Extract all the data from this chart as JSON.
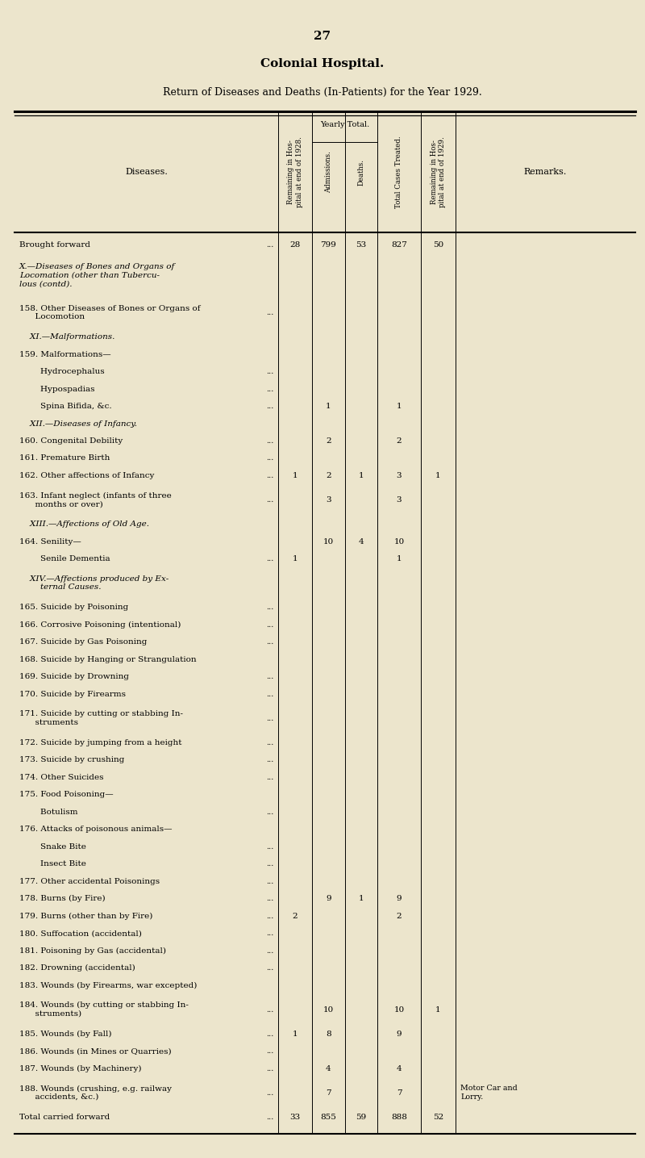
{
  "page_number": "27",
  "title": "Colonial Hospital.",
  "subtitle": "Return of Diseases and Deaths (In-Patients) for the Year 1929.",
  "bg_color": "#ece5cc",
  "rows": [
    {
      "label": "Brought forward",
      "dots": true,
      "rem28": "28",
      "adm": "799",
      "dea": "53",
      "tot": "827",
      "rem29": "50",
      "rem": "",
      "multiline": false,
      "style": "normal",
      "indented": false
    },
    {
      "label": "X.—Diseases of Bones and Organs of\nLocomation (other than Tubercu-\nlous (contd).",
      "dots": false,
      "rem28": "",
      "adm": "",
      "dea": "",
      "tot": "",
      "rem29": "",
      "rem": "",
      "multiline": true,
      "style": "italic",
      "indented": false
    },
    {
      "label": "158. Other Diseases of Bones or Organs of\n      Locomotion",
      "dots": true,
      "rem28": "",
      "adm": "",
      "dea": "",
      "tot": "",
      "rem29": "",
      "rem": "",
      "multiline": true,
      "style": "normal",
      "indented": false
    },
    {
      "label": "    XI.—Malformations.",
      "dots": false,
      "rem28": "",
      "adm": "",
      "dea": "",
      "tot": "",
      "rem29": "",
      "rem": "",
      "multiline": false,
      "style": "italic",
      "indented": true
    },
    {
      "label": "159. Malformations—",
      "dots": false,
      "rem28": "",
      "adm": "",
      "dea": "",
      "tot": "",
      "rem29": "",
      "rem": "",
      "multiline": false,
      "style": "normal",
      "indented": false
    },
    {
      "label": "        Hydrocephalus",
      "dots": true,
      "rem28": "",
      "adm": "",
      "dea": "",
      "tot": "",
      "rem29": "",
      "rem": "",
      "multiline": false,
      "style": "normal",
      "indented": true
    },
    {
      "label": "        Hypospadias",
      "dots": true,
      "rem28": "",
      "adm": "",
      "dea": "",
      "tot": "",
      "rem29": "",
      "rem": "",
      "multiline": false,
      "style": "normal",
      "indented": true
    },
    {
      "label": "        Spina Bifida, &c.",
      "dots": true,
      "rem28": "",
      "adm": "1",
      "dea": "",
      "tot": "1",
      "rem29": "",
      "rem": "",
      "multiline": false,
      "style": "normal",
      "indented": true
    },
    {
      "label": "    XII.—Diseases of Infancy.",
      "dots": false,
      "rem28": "",
      "adm": "",
      "dea": "",
      "tot": "",
      "rem29": "",
      "rem": "",
      "multiline": false,
      "style": "italic",
      "indented": true
    },
    {
      "label": "160. Congenital Debility",
      "dots": true,
      "rem28": "",
      "adm": "2",
      "dea": "",
      "tot": "2",
      "rem29": "",
      "rem": "",
      "multiline": false,
      "style": "normal",
      "indented": false
    },
    {
      "label": "161. Premature Birth",
      "dots": true,
      "rem28": "",
      "adm": "",
      "dea": "",
      "tot": "",
      "rem29": "",
      "rem": "",
      "multiline": false,
      "style": "normal",
      "indented": false
    },
    {
      "label": "162. Other affections of Infancy",
      "dots": true,
      "rem28": "1",
      "adm": "2",
      "dea": "1",
      "tot": "3",
      "rem29": "1",
      "rem": "",
      "multiline": false,
      "style": "normal",
      "indented": false
    },
    {
      "label": "163. Infant neglect (infants of three\n      months or over)",
      "dots": true,
      "rem28": "",
      "adm": "3",
      "dea": "",
      "tot": "3",
      "rem29": "",
      "rem": "",
      "multiline": true,
      "style": "normal",
      "indented": false
    },
    {
      "label": "    XIII.—Affections of Old Age.",
      "dots": false,
      "rem28": "",
      "adm": "",
      "dea": "",
      "tot": "",
      "rem29": "",
      "rem": "",
      "multiline": false,
      "style": "italic",
      "indented": true
    },
    {
      "label": "164. Senility—",
      "dots": false,
      "rem28": "",
      "adm": "10",
      "dea": "4",
      "tot": "10",
      "rem29": "",
      "rem": "",
      "multiline": false,
      "style": "normal",
      "indented": false
    },
    {
      "label": "        Senile Dementia",
      "dots": true,
      "rem28": "1",
      "adm": "",
      "dea": "",
      "tot": "1",
      "rem29": "",
      "rem": "",
      "multiline": false,
      "style": "normal",
      "indented": true
    },
    {
      "label": "    XIV.—Affections produced by Ex-\n        ternal Causes.",
      "dots": false,
      "rem28": "",
      "adm": "",
      "dea": "",
      "tot": "",
      "rem29": "",
      "rem": "",
      "multiline": true,
      "style": "italic",
      "indented": true
    },
    {
      "label": "165. Suicide by Poisoning",
      "dots": true,
      "rem28": "",
      "adm": "",
      "dea": "",
      "tot": "",
      "rem29": "",
      "rem": "",
      "multiline": false,
      "style": "normal",
      "indented": false
    },
    {
      "label": "166. Corrosive Poisoning (intentional)",
      "dots": true,
      "rem28": "",
      "adm": "",
      "dea": "",
      "tot": "",
      "rem29": "",
      "rem": "",
      "multiline": false,
      "style": "normal",
      "indented": false
    },
    {
      "label": "167. Suicide by Gas Poisoning",
      "dots": true,
      "rem28": "",
      "adm": "",
      "dea": "",
      "tot": "",
      "rem29": "",
      "rem": "",
      "multiline": false,
      "style": "normal",
      "indented": false
    },
    {
      "label": "168. Suicide by Hanging or Strangulation",
      "dots": false,
      "rem28": "",
      "adm": "",
      "dea": "",
      "tot": "",
      "rem29": "",
      "rem": "",
      "multiline": false,
      "style": "normal",
      "indented": false
    },
    {
      "label": "169. Suicide by Drowning",
      "dots": true,
      "rem28": "",
      "adm": "",
      "dea": "",
      "tot": "",
      "rem29": "",
      "rem": "",
      "multiline": false,
      "style": "normal",
      "indented": false
    },
    {
      "label": "170. Suicide by Firearms",
      "dots": true,
      "rem28": "",
      "adm": "",
      "dea": "",
      "tot": "",
      "rem29": "",
      "rem": "",
      "multiline": false,
      "style": "normal",
      "indented": false
    },
    {
      "label": "171. Suicide by cutting or stabbing In-\n      struments",
      "dots": true,
      "rem28": "",
      "adm": "",
      "dea": "",
      "tot": "",
      "rem29": "",
      "rem": "",
      "multiline": true,
      "style": "normal",
      "indented": false
    },
    {
      "label": "172. Suicide by jumping from a height",
      "dots": true,
      "rem28": "",
      "adm": "",
      "dea": "",
      "tot": "",
      "rem29": "",
      "rem": "",
      "multiline": false,
      "style": "normal",
      "indented": false
    },
    {
      "label": "173. Suicide by crushing",
      "dots": true,
      "rem28": "",
      "adm": "",
      "dea": "",
      "tot": "",
      "rem29": "",
      "rem": "",
      "multiline": false,
      "style": "normal",
      "indented": false
    },
    {
      "label": "174. Other Suicides",
      "dots": true,
      "rem28": "",
      "adm": "",
      "dea": "",
      "tot": "",
      "rem29": "",
      "rem": "",
      "multiline": false,
      "style": "normal",
      "indented": false
    },
    {
      "label": "175. Food Poisoning—",
      "dots": false,
      "rem28": "",
      "adm": "",
      "dea": "",
      "tot": "",
      "rem29": "",
      "rem": "",
      "multiline": false,
      "style": "normal",
      "indented": false
    },
    {
      "label": "        Botulism",
      "dots": true,
      "rem28": "",
      "adm": "",
      "dea": "",
      "tot": "",
      "rem29": "",
      "rem": "",
      "multiline": false,
      "style": "normal",
      "indented": true
    },
    {
      "label": "176. Attacks of poisonous animals—",
      "dots": false,
      "rem28": "",
      "adm": "",
      "dea": "",
      "tot": "",
      "rem29": "",
      "rem": "",
      "multiline": false,
      "style": "normal",
      "indented": false
    },
    {
      "label": "        Snake Bite",
      "dots": true,
      "rem28": "",
      "adm": "",
      "dea": "",
      "tot": "",
      "rem29": "",
      "rem": "",
      "multiline": false,
      "style": "normal",
      "indented": true
    },
    {
      "label": "        Insect Bite",
      "dots": true,
      "rem28": "",
      "adm": "",
      "dea": "",
      "tot": "",
      "rem29": "",
      "rem": "",
      "multiline": false,
      "style": "normal",
      "indented": true
    },
    {
      "label": "177. Other accidental Poisonings",
      "dots": true,
      "rem28": "",
      "adm": "",
      "dea": "",
      "tot": "",
      "rem29": "",
      "rem": "",
      "multiline": false,
      "style": "normal",
      "indented": false
    },
    {
      "label": "178. Burns (by Fire)",
      "dots": true,
      "rem28": "",
      "adm": "9",
      "dea": "1",
      "tot": "9",
      "rem29": "",
      "rem": "",
      "multiline": false,
      "style": "normal",
      "indented": false
    },
    {
      "label": "179. Burns (other than by Fire)",
      "dots": true,
      "rem28": "2",
      "adm": "",
      "dea": "",
      "tot": "2",
      "rem29": "",
      "rem": "",
      "multiline": false,
      "style": "normal",
      "indented": false
    },
    {
      "label": "180. Suffocation (accidental)",
      "dots": true,
      "rem28": "",
      "adm": "",
      "dea": "",
      "tot": "",
      "rem29": "",
      "rem": "",
      "multiline": false,
      "style": "normal",
      "indented": false
    },
    {
      "label": "181. Poisoning by Gas (accidental)",
      "dots": true,
      "rem28": "",
      "adm": "",
      "dea": "",
      "tot": "",
      "rem29": "",
      "rem": "",
      "multiline": false,
      "style": "normal",
      "indented": false
    },
    {
      "label": "182. Drowning (accidental)",
      "dots": true,
      "rem28": "",
      "adm": "",
      "dea": "",
      "tot": "",
      "rem29": "",
      "rem": "",
      "multiline": false,
      "style": "normal",
      "indented": false
    },
    {
      "label": "183. Wounds (by Firearms, war excepted)",
      "dots": false,
      "rem28": "",
      "adm": "",
      "dea": "",
      "tot": "",
      "rem29": "",
      "rem": "",
      "multiline": false,
      "style": "normal",
      "indented": false
    },
    {
      "label": "184. Wounds (by cutting or stabbing In-\n      struments)",
      "dots": true,
      "rem28": "",
      "adm": "10",
      "dea": "",
      "tot": "10",
      "rem29": "1",
      "rem": "",
      "multiline": true,
      "style": "normal",
      "indented": false
    },
    {
      "label": "185. Wounds (by Fall)",
      "dots": true,
      "rem28": "1",
      "adm": "8",
      "dea": "",
      "tot": "9",
      "rem29": "",
      "rem": "",
      "multiline": false,
      "style": "normal",
      "indented": false
    },
    {
      "label": "186. Wounds (in Mines or Quarries)",
      "dots": true,
      "rem28": "",
      "adm": "",
      "dea": "",
      "tot": "",
      "rem29": "",
      "rem": "",
      "multiline": false,
      "style": "normal",
      "indented": false
    },
    {
      "label": "187. Wounds (by Machinery)",
      "dots": true,
      "rem28": "",
      "adm": "4",
      "dea": "",
      "tot": "4",
      "rem29": "",
      "rem": "",
      "multiline": false,
      "style": "normal",
      "indented": false
    },
    {
      "label": "188. Wounds (crushing, e.g. railway\n      accidents, &c.)",
      "dots": true,
      "rem28": "",
      "adm": "7",
      "dea": "",
      "tot": "7",
      "rem29": "",
      "rem": "Motor Car and\nLorry.",
      "multiline": true,
      "style": "normal",
      "indented": false
    },
    {
      "label": "Total carried forward",
      "dots": true,
      "rem28": "33",
      "adm": "855",
      "dea": "59",
      "tot": "888",
      "rem29": "52",
      "rem": "",
      "multiline": false,
      "style": "normal",
      "indented": false
    }
  ]
}
